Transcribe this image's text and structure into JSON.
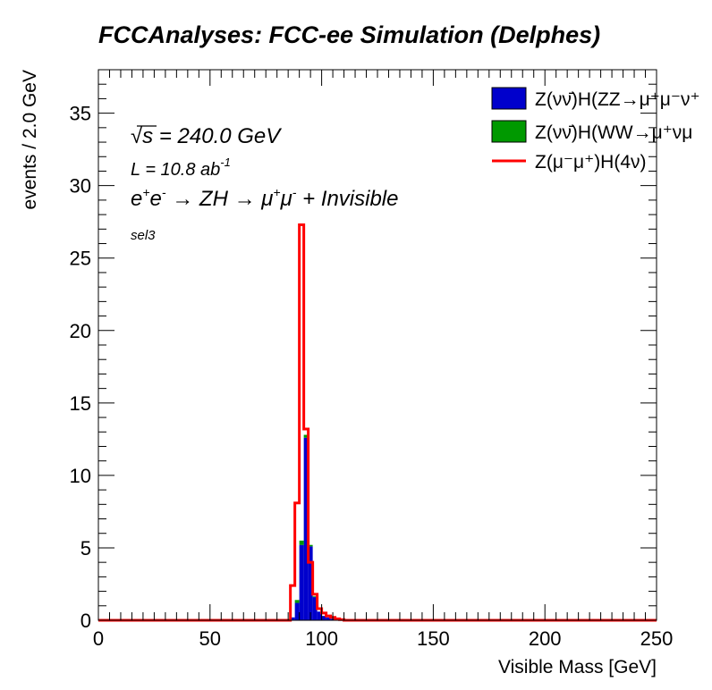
{
  "title": "FCCAnalyses: FCC-ee Simulation (Delphes)",
  "annotations": {
    "sqrt_s_symbol": "√s",
    "energy": "= 240.0 GeV",
    "lumi_prefix": "L = 10.8 ab",
    "lumi_exp": "-1",
    "process_e": "e",
    "process_sup1": "+",
    "process_e2": "e",
    "process_sup2": "-",
    "process_arrow1": " → ZH ",
    "process_arrow2": "→ μ",
    "process_sup3": "+",
    "process_mu": "μ",
    "process_sup4": "-",
    "process_tail": " + Invisible",
    "selection": "sel3"
  },
  "colors": {
    "zz": "#0000cc",
    "ww": "#009900",
    "signal": "#ff0000",
    "axis": "#000000"
  },
  "chart_data": {
    "type": "histogram",
    "xlabel": "Visible Mass [GeV]",
    "ylabel": "events / 2.0 GeV",
    "xlim": [
      0,
      250
    ],
    "ylim": [
      0,
      38
    ],
    "x_ticks": [
      0,
      50,
      100,
      150,
      200,
      250
    ],
    "y_ticks": [
      0,
      5,
      10,
      15,
      20,
      25,
      30,
      35
    ],
    "bin_width": 2.0,
    "legend_position": "top-right",
    "series": [
      {
        "name": "Z(νν̄)H(ZZ→μ⁺μ⁻ν⁺",
        "style": "stacked-fill",
        "color": "#0000cc",
        "bins": [
          [
            86,
            0.2
          ],
          [
            88,
            1.2
          ],
          [
            90,
            5.2
          ],
          [
            92,
            12.6
          ],
          [
            94,
            5.1
          ],
          [
            96,
            1.6
          ],
          [
            98,
            0.6
          ],
          [
            100,
            0.3
          ],
          [
            102,
            0.2
          ],
          [
            104,
            0.1
          ]
        ]
      },
      {
        "name": "Z(νν̄)H(WW→μ⁺νμ",
        "style": "stacked-fill",
        "color": "#009900",
        "bins": [
          [
            88,
            0.2
          ],
          [
            90,
            0.3
          ],
          [
            92,
            0.2
          ],
          [
            94,
            0.1
          ],
          [
            96,
            0.05
          ]
        ]
      },
      {
        "name": "Z(μ⁻μ⁺)H(4ν)",
        "style": "step-line",
        "color": "#ff0000",
        "bins": [
          [
            86,
            2.4
          ],
          [
            88,
            8.1
          ],
          [
            90,
            27.3
          ],
          [
            92,
            13.2
          ],
          [
            94,
            4.0
          ],
          [
            96,
            1.8
          ],
          [
            98,
            0.8
          ],
          [
            100,
            0.5
          ],
          [
            102,
            0.3
          ],
          [
            104,
            0.2
          ],
          [
            106,
            0.1
          ],
          [
            108,
            0.05
          ]
        ]
      }
    ]
  }
}
